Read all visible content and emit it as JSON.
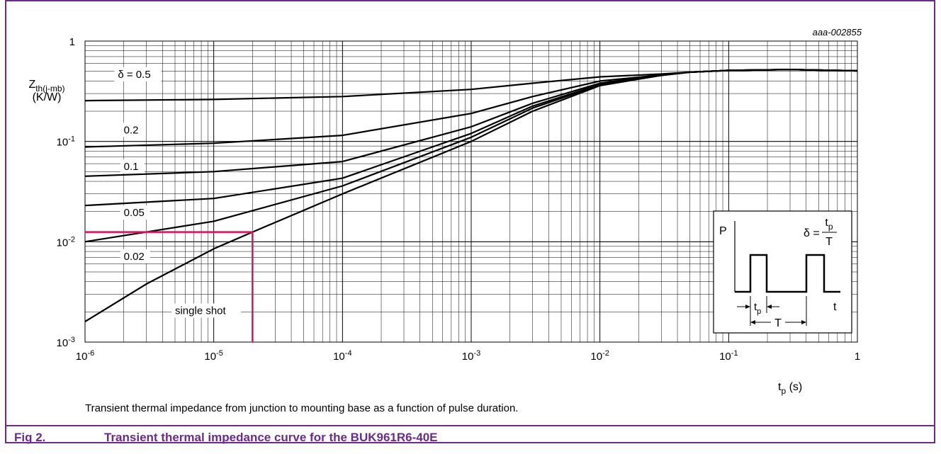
{
  "figure": {
    "label": "Fig 2.",
    "title": "Transient thermal impedance curve for the BUK961R6-40E",
    "description": "Transient thermal impedance from junction to mounting base as a function of pulse duration.",
    "code": "aaa-002855",
    "accent_color": "#6a2c8a"
  },
  "chart_data": {
    "type": "line",
    "x_scale": "log",
    "y_scale": "log",
    "xlim": [
      1e-06,
      1
    ],
    "ylim": [
      0.001,
      1
    ],
    "grid": true,
    "xlabel": {
      "base": "t",
      "sub": "p",
      "unit": " (s)"
    },
    "ylabel": {
      "base": "Z",
      "sub": "th(j-mb)",
      "unit": "(K/W)"
    },
    "x_ticks": [
      {
        "value": 1e-06,
        "base": "10",
        "exp": "-6"
      },
      {
        "value": 1e-05,
        "base": "10",
        "exp": "-5"
      },
      {
        "value": 0.0001,
        "base": "10",
        "exp": "-4"
      },
      {
        "value": 0.001,
        "base": "10",
        "exp": "-3"
      },
      {
        "value": 0.01,
        "base": "10",
        "exp": "-2"
      },
      {
        "value": 0.1,
        "base": "10",
        "exp": "-1"
      },
      {
        "value": 1,
        "base": "1",
        "exp": ""
      }
    ],
    "y_ticks": [
      {
        "value": 1,
        "base": "1",
        "exp": ""
      },
      {
        "value": 0.1,
        "base": "10",
        "exp": "-1"
      },
      {
        "value": 0.01,
        "base": "10",
        "exp": "-2"
      },
      {
        "value": 0.001,
        "base": "10",
        "exp": "-3"
      }
    ],
    "series": [
      {
        "name": "δ = 0.5",
        "label_at": [
          1.8e-06,
          0.43
        ],
        "x": [
          1e-06,
          1e-05,
          0.0001,
          0.001,
          0.003,
          0.01,
          0.03,
          0.05,
          0.1,
          0.3,
          1
        ],
        "y": [
          0.255,
          0.262,
          0.28,
          0.33,
          0.38,
          0.44,
          0.47,
          0.49,
          0.51,
          0.52,
          0.505
        ]
      },
      {
        "name": "0.2",
        "label_at": [
          2e-06,
          0.12
        ],
        "x": [
          1e-06,
          1e-05,
          0.0001,
          0.001,
          0.003,
          0.01,
          0.03,
          0.05,
          0.1,
          0.3,
          1
        ],
        "y": [
          0.088,
          0.096,
          0.115,
          0.19,
          0.28,
          0.4,
          0.46,
          0.49,
          0.51,
          0.52,
          0.505
        ]
      },
      {
        "name": "0.1",
        "label_at": [
          2e-06,
          0.052
        ],
        "x": [
          1e-06,
          1e-05,
          0.0001,
          0.001,
          0.003,
          0.01,
          0.03,
          0.05,
          0.1,
          0.3,
          1
        ],
        "y": [
          0.045,
          0.05,
          0.063,
          0.14,
          0.24,
          0.38,
          0.46,
          0.49,
          0.51,
          0.52,
          0.505
        ]
      },
      {
        "name": "0.05",
        "label_at": [
          2e-06,
          0.018
        ],
        "x": [
          1e-06,
          1e-05,
          0.0001,
          0.001,
          0.003,
          0.01,
          0.03,
          0.05,
          0.1,
          0.3,
          1
        ],
        "y": [
          0.023,
          0.027,
          0.043,
          0.12,
          0.225,
          0.37,
          0.455,
          0.49,
          0.51,
          0.52,
          0.505
        ]
      },
      {
        "name": "0.02",
        "label_at": [
          2e-06,
          0.0066
        ],
        "x": [
          1e-06,
          1e-05,
          0.0001,
          0.001,
          0.003,
          0.01,
          0.03,
          0.05,
          0.1,
          0.3,
          1
        ],
        "y": [
          0.01,
          0.016,
          0.036,
          0.11,
          0.215,
          0.365,
          0.455,
          0.49,
          0.51,
          0.52,
          0.505
        ]
      },
      {
        "name": "single shot",
        "label_at": [
          5e-06,
          0.0019
        ],
        "x": [
          1e-06,
          3e-06,
          1e-05,
          2e-05,
          0.0001,
          0.001,
          0.003,
          0.01,
          0.03,
          0.05,
          0.1,
          0.3,
          1
        ],
        "y": [
          0.0016,
          0.0038,
          0.0085,
          0.0125,
          0.03,
          0.1,
          0.2,
          0.36,
          0.455,
          0.49,
          0.51,
          0.52,
          0.505
        ]
      }
    ],
    "marker": {
      "x": 2e-05,
      "y": 0.0125,
      "color": "#d4145a"
    }
  },
  "inset": {
    "p_label": "P",
    "t_label": "t",
    "delta": "δ =",
    "frac_num_base": "t",
    "frac_num_sub": "p",
    "frac_den": "T",
    "tp_base": "t",
    "tp_sub": "p",
    "period": "T"
  }
}
